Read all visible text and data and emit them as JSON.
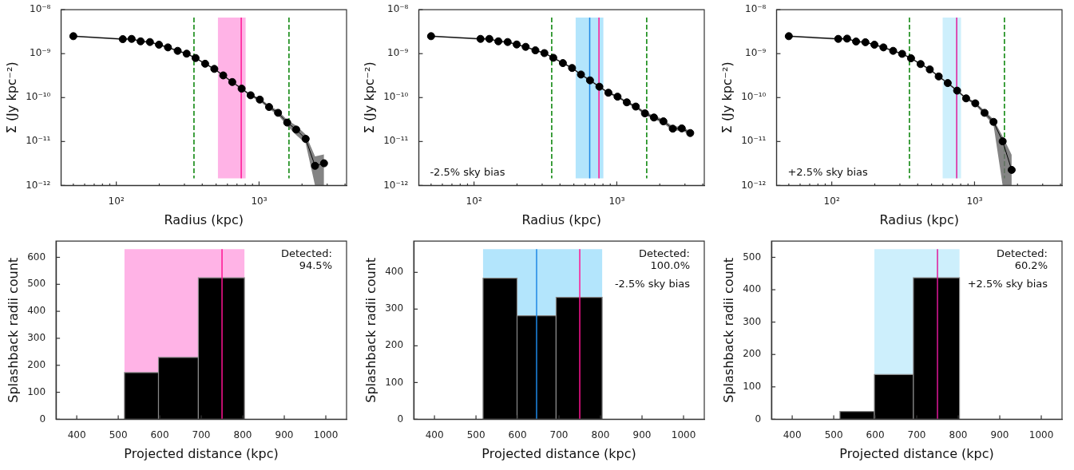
{
  "chart_data": [
    {
      "type": "line",
      "xlabel": "Radius (kpc)",
      "ylabel": "Σ (Jy kpc⁻²)",
      "log": "xy",
      "marker": "circle",
      "xlim": [
        41,
        4100
      ],
      "ylim": [
        1e-12,
        1e-08
      ],
      "xticks": [
        {
          "value": 50,
          "label": null
        },
        {
          "value": 60,
          "label": null
        },
        {
          "value": 70,
          "label": null
        },
        {
          "value": 80,
          "label": null
        },
        {
          "value": 90,
          "label": null
        },
        {
          "value": 100,
          "label": "10²"
        },
        {
          "value": 200,
          "label": null
        },
        {
          "value": 300,
          "label": null
        },
        {
          "value": 400,
          "label": null
        },
        {
          "value": 500,
          "label": null
        },
        {
          "value": 600,
          "label": null
        },
        {
          "value": 700,
          "label": null
        },
        {
          "value": 800,
          "label": null
        },
        {
          "value": 900,
          "label": null
        },
        {
          "value": 1000,
          "label": "10³"
        },
        {
          "value": 2000,
          "label": null
        },
        {
          "value": 3000,
          "label": null
        },
        {
          "value": 4000,
          "label": null
        }
      ],
      "yticks": [
        {
          "value": 1e-12,
          "label": "10⁻¹²"
        },
        {
          "value": 1e-11,
          "label": "10⁻¹¹"
        },
        {
          "value": 1e-10,
          "label": "10⁻¹⁰"
        },
        {
          "value": 1e-09,
          "label": "10⁻⁹"
        },
        {
          "value": 1e-08,
          "label": "10⁻⁸"
        }
      ],
      "x": [
        50,
        111,
        128,
        148,
        172,
        199,
        230,
        269,
        311,
        359,
        419,
        486,
        561,
        649,
        755,
        873,
        1012,
        1175,
        1358,
        1574,
        1820,
        2120,
        2466,
        2851
      ],
      "series": [
        {
          "color": "#000000",
          "values": [
            2.5e-09,
            2.14e-09,
            2.17e-09,
            1.91e-09,
            1.84e-09,
            1.6e-09,
            1.39e-09,
            1.16e-09,
            1e-09,
            7.96e-10,
            5.9e-10,
            4.5e-10,
            3.2e-10,
            2.26e-10,
            1.6e-10,
            1.13e-10,
            9e-11,
            6.1e-11,
            4.5e-11,
            2.7e-11,
            1.87e-11,
            1.15e-11,
            2.8e-12,
            3.2e-12
          ],
          "lower": [
            2.4e-09,
            2.05e-09,
            2.08e-09,
            1.83e-09,
            1.76e-09,
            1.53e-09,
            1.33e-09,
            1.11e-09,
            9.6e-10,
            7.6e-10,
            5.6e-10,
            4.3e-10,
            3.05e-10,
            2.15e-10,
            1.52e-10,
            1.06e-10,
            8.3e-11,
            5.5e-11,
            4e-11,
            2.3e-11,
            1.4e-11,
            9e-12,
            1e-12,
            1e-12
          ],
          "upper": [
            2.6e-09,
            2.23e-09,
            2.26e-09,
            1.99e-09,
            1.92e-09,
            1.67e-09,
            1.45e-09,
            1.21e-09,
            1.04e-09,
            8.3e-10,
            6.2e-10,
            4.7e-10,
            3.35e-10,
            2.37e-10,
            1.68e-10,
            1.2e-10,
            9.7e-11,
            6.7e-11,
            5e-11,
            3.1e-11,
            2.3e-11,
            1.45e-11,
            4.6e-12,
            5.1e-12
          ]
        }
      ],
      "bands": [
        {
          "axis": "x",
          "from": 515,
          "to": 805,
          "color": "#ffb3e6"
        }
      ],
      "ref_lines": [
        {
          "axis": "x",
          "value": 350,
          "color": "#008000",
          "line_style": "dashed"
        },
        {
          "axis": "x",
          "value": 1620,
          "color": "#008000",
          "line_style": "dashed"
        },
        {
          "axis": "x",
          "value": 750,
          "color": "#ff1493",
          "line_style": "solid"
        }
      ]
    },
    {
      "type": "line",
      "xlabel": "Radius (kpc)",
      "ylabel": "Σ (Jy kpc⁻²)",
      "log": "xy",
      "marker": "circle",
      "xlim": [
        41,
        4100
      ],
      "ylim": [
        1e-12,
        1e-08
      ],
      "xticks": [
        {
          "value": 50,
          "label": null
        },
        {
          "value": 60,
          "label": null
        },
        {
          "value": 70,
          "label": null
        },
        {
          "value": 80,
          "label": null
        },
        {
          "value": 90,
          "label": null
        },
        {
          "value": 100,
          "label": "10²"
        },
        {
          "value": 200,
          "label": null
        },
        {
          "value": 300,
          "label": null
        },
        {
          "value": 400,
          "label": null
        },
        {
          "value": 500,
          "label": null
        },
        {
          "value": 600,
          "label": null
        },
        {
          "value": 700,
          "label": null
        },
        {
          "value": 800,
          "label": null
        },
        {
          "value": 900,
          "label": null
        },
        {
          "value": 1000,
          "label": "10³"
        },
        {
          "value": 2000,
          "label": null
        },
        {
          "value": 3000,
          "label": null
        },
        {
          "value": 4000,
          "label": null
        }
      ],
      "yticks": [
        {
          "value": 1e-12,
          "label": "10⁻¹²"
        },
        {
          "value": 1e-11,
          "label": "10⁻¹¹"
        },
        {
          "value": 1e-10,
          "label": "10⁻¹⁰"
        },
        {
          "value": 1e-09,
          "label": "10⁻⁹"
        },
        {
          "value": 1e-08,
          "label": "10⁻⁸"
        }
      ],
      "x": [
        50,
        111,
        128,
        148,
        172,
        199,
        230,
        269,
        311,
        359,
        419,
        486,
        561,
        649,
        755,
        873,
        1012,
        1175,
        1358,
        1574,
        1820,
        2120,
        2466,
        2851,
        3268
      ],
      "series": [
        {
          "color": "#000000",
          "values": [
            2.5e-09,
            2.17e-09,
            2.17e-09,
            1.91e-09,
            1.84e-09,
            1.62e-09,
            1.43e-09,
            1.19e-09,
            1.03e-09,
            8.05e-10,
            6.1e-10,
            4.72e-10,
            3.35e-10,
            2.47e-10,
            1.77e-10,
            1.29e-10,
            1.05e-10,
            7.8e-11,
            6.25e-11,
            4.38e-11,
            3.52e-11,
            2.88e-11,
            1.96e-11,
            1.99e-11,
            1.56e-11
          ],
          "lower": [
            2.4e-09,
            2.08e-09,
            2.08e-09,
            1.83e-09,
            1.76e-09,
            1.55e-09,
            1.37e-09,
            1.14e-09,
            9.9e-10,
            7.7e-10,
            5.85e-10,
            4.5e-10,
            3.2e-10,
            2.35e-10,
            1.68e-10,
            1.22e-10,
            9.9e-11,
            7.3e-11,
            5.8e-11,
            4e-11,
            3.2e-11,
            2.6e-11,
            1.75e-11,
            1.78e-11,
            1.4e-11
          ],
          "upper": [
            2.6e-09,
            2.26e-09,
            2.26e-09,
            1.99e-09,
            1.92e-09,
            1.69e-09,
            1.49e-09,
            1.24e-09,
            1.07e-09,
            8.4e-10,
            6.35e-10,
            4.95e-10,
            3.5e-10,
            2.6e-10,
            1.86e-10,
            1.36e-10,
            1.11e-10,
            8.3e-11,
            6.7e-11,
            4.8e-11,
            3.85e-11,
            3.2e-11,
            2.2e-11,
            2.2e-11,
            1.72e-11
          ]
        }
      ],
      "bands": [
        {
          "axis": "x",
          "from": 515,
          "to": 805,
          "color": "#b3e5fc"
        }
      ],
      "ref_lines": [
        {
          "axis": "x",
          "value": 350,
          "color": "#008000",
          "line_style": "dashed"
        },
        {
          "axis": "x",
          "value": 1620,
          "color": "#008000",
          "line_style": "dashed"
        },
        {
          "axis": "x",
          "value": 646,
          "color": "#1e88e5",
          "line_style": "solid"
        },
        {
          "axis": "x",
          "value": 750,
          "color": "#ff1493",
          "line_style": "solid"
        }
      ],
      "annotations": [
        "-2.5% sky bias"
      ]
    },
    {
      "type": "line",
      "xlabel": "Radius (kpc)",
      "ylabel": "Σ (Jy kpc⁻²)",
      "log": "xy",
      "marker": "circle",
      "xlim": [
        41,
        4100
      ],
      "ylim": [
        1e-12,
        1e-08
      ],
      "xticks": [
        {
          "value": 50,
          "label": null
        },
        {
          "value": 60,
          "label": null
        },
        {
          "value": 70,
          "label": null
        },
        {
          "value": 80,
          "label": null
        },
        {
          "value": 90,
          "label": null
        },
        {
          "value": 100,
          "label": "10²"
        },
        {
          "value": 200,
          "label": null
        },
        {
          "value": 300,
          "label": null
        },
        {
          "value": 400,
          "label": null
        },
        {
          "value": 500,
          "label": null
        },
        {
          "value": 600,
          "label": null
        },
        {
          "value": 700,
          "label": null
        },
        {
          "value": 800,
          "label": null
        },
        {
          "value": 900,
          "label": null
        },
        {
          "value": 1000,
          "label": "10³"
        },
        {
          "value": 2000,
          "label": null
        },
        {
          "value": 3000,
          "label": null
        },
        {
          "value": 4000,
          "label": null
        }
      ],
      "yticks": [
        {
          "value": 1e-12,
          "label": "10⁻¹²"
        },
        {
          "value": 1e-11,
          "label": "10⁻¹¹"
        },
        {
          "value": 1e-10,
          "label": "10⁻¹⁰"
        },
        {
          "value": 1e-09,
          "label": "10⁻⁹"
        },
        {
          "value": 1e-08,
          "label": "10⁻⁸"
        }
      ],
      "x": [
        50,
        111,
        128,
        148,
        172,
        199,
        230,
        269,
        311,
        359,
        419,
        486,
        561,
        649,
        755,
        873,
        1012,
        1175,
        1358,
        1574,
        1820
      ],
      "series": [
        {
          "color": "#000000",
          "values": [
            2.5e-09,
            2.17e-09,
            2.2e-09,
            1.89e-09,
            1.82e-09,
            1.6e-09,
            1.39e-09,
            1.16e-09,
            9.9e-10,
            7.85e-10,
            5.8e-10,
            4.37e-10,
            3.03e-10,
            2.14e-10,
            1.44e-10,
            9.6e-11,
            7.4e-11,
            4.5e-11,
            2.8e-11,
            1.01e-11,
            2.26e-12
          ],
          "lower": [
            2.4e-09,
            2.08e-09,
            2.11e-09,
            1.81e-09,
            1.74e-09,
            1.53e-09,
            1.33e-09,
            1.11e-09,
            9.5e-10,
            7.5e-10,
            5.55e-10,
            4.15e-10,
            2.88e-10,
            2.03e-10,
            1.36e-10,
            9e-11,
            6.8e-11,
            4e-11,
            2.4e-11,
            1e-12,
            1e-12
          ],
          "upper": [
            2.6e-09,
            2.26e-09,
            2.29e-09,
            1.97e-09,
            1.9e-09,
            1.67e-09,
            1.45e-09,
            1.21e-09,
            1.03e-09,
            8.2e-10,
            6.05e-10,
            4.6e-10,
            3.18e-10,
            2.25e-10,
            1.52e-10,
            1.02e-10,
            8e-11,
            5e-11,
            3.2e-11,
            1.3e-11,
            5e-12
          ]
        }
      ],
      "bands": [
        {
          "axis": "x",
          "from": 598,
          "to": 804,
          "color": "#cdeffc"
        }
      ],
      "ref_lines": [
        {
          "axis": "x",
          "value": 350,
          "color": "#008000",
          "line_style": "dashed"
        },
        {
          "axis": "x",
          "value": 1620,
          "color": "#008000",
          "line_style": "dashed"
        },
        {
          "axis": "x",
          "value": 750,
          "color": "#e0189a",
          "line_style": "solid"
        }
      ],
      "annotations": [
        "+2.5% sky bias"
      ]
    },
    {
      "type": "histogram",
      "xlabel": "Projected distance (kpc)",
      "ylabel": "Splashback radii count",
      "color": "#000000",
      "xlim": [
        350,
        1050
      ],
      "ylim": [
        0,
        660
      ],
      "xticks": [
        400,
        500,
        600,
        700,
        800,
        900,
        1000
      ],
      "yticks": [
        0,
        100,
        200,
        300,
        400,
        500,
        600
      ],
      "bins": [
        515,
        597,
        693,
        804
      ],
      "values": [
        173,
        229,
        524
      ],
      "bands": [
        {
          "axis": "x",
          "from": 515,
          "to": 804,
          "color": "#ffb3e6"
        }
      ],
      "ref_lines": [
        {
          "axis": "x",
          "value": 750,
          "color": "#ff1493",
          "line_style": "solid"
        }
      ],
      "annotations": [
        "Detected:\n94.5%"
      ]
    },
    {
      "type": "histogram",
      "xlabel": "Projected distance (kpc)",
      "ylabel": "Splashback radii count",
      "color": "#000000",
      "xlim": [
        350,
        1050
      ],
      "ylim": [
        0,
        485
      ],
      "xticks": [
        400,
        500,
        600,
        700,
        800,
        900,
        1000
      ],
      "yticks": [
        0,
        100,
        200,
        300,
        400
      ],
      "bins": [
        517,
        599,
        693,
        804
      ],
      "values": [
        384,
        282,
        332
      ],
      "bands": [
        {
          "axis": "x",
          "from": 517,
          "to": 804,
          "color": "#b3e5fc"
        }
      ],
      "ref_lines": [
        {
          "axis": "x",
          "value": 646,
          "color": "#1e88e5",
          "line_style": "solid"
        },
        {
          "axis": "x",
          "value": 750,
          "color": "#ff1493",
          "line_style": "solid"
        }
      ],
      "annotations": [
        "Detected:\n100.0%",
        "-2.5% sky bias"
      ]
    },
    {
      "type": "histogram",
      "xlabel": "Projected distance (kpc)",
      "ylabel": "Splashback radii count",
      "color": "#000000",
      "xlim": [
        350,
        1050
      ],
      "ylim": [
        0,
        550
      ],
      "xticks": [
        400,
        500,
        600,
        700,
        800,
        900,
        1000
      ],
      "yticks": [
        0,
        100,
        200,
        300,
        400,
        500
      ],
      "bins": [
        515,
        598,
        692,
        803
      ],
      "values": [
        24,
        138,
        437
      ],
      "bands": [
        {
          "axis": "x",
          "from": 598,
          "to": 803,
          "color": "#cdeffc"
        }
      ],
      "ref_lines": [
        {
          "axis": "x",
          "value": 750,
          "color": "#e0189a",
          "line_style": "solid"
        }
      ],
      "annotations": [
        "Detected:\n60.2%",
        "+2.5% sky bias"
      ]
    }
  ]
}
